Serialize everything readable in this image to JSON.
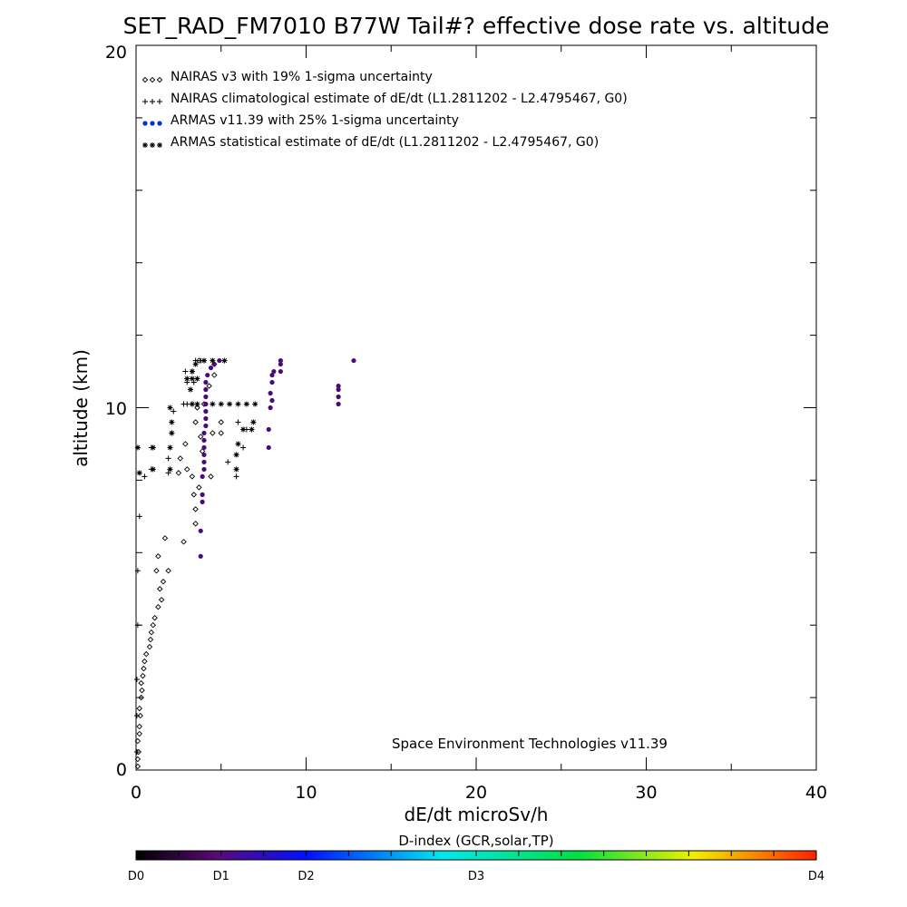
{
  "chart_data": {
    "type": "scatter",
    "title": "SET_RAD_FM7010  B77W Tail#? effective dose rate vs. altitude",
    "xlabel": "dE/dt microSv/h",
    "ylabel": "altitude (km)",
    "xlim": [
      0,
      40
    ],
    "ylim": [
      0,
      20
    ],
    "x_ticks": [
      "0",
      "10",
      "20",
      "30",
      "40"
    ],
    "y_ticks": [
      "0",
      "10",
      "20"
    ],
    "legend_position": "top-left",
    "credit": "Space Environment Technologies v11.39",
    "colorbar": {
      "title": "D-index (GCR,solar,TP)",
      "labels": [
        {
          "text": "D0",
          "pos": 0.0
        },
        {
          "text": "D1",
          "pos": 0.125
        },
        {
          "text": "D2",
          "pos": 0.25
        },
        {
          "text": "D3",
          "pos": 0.5
        },
        {
          "text": "D4",
          "pos": 1.0
        }
      ],
      "colors": [
        "#000000",
        "#5a0a78",
        "#0010ff",
        "#00e8f0",
        "#00e040",
        "#f0f000",
        "#ff2000"
      ]
    },
    "series": [
      {
        "name": "NAIRAS v3 with 19% 1-sigma uncertainty",
        "marker": "diamond",
        "color": "#000000",
        "points": [
          [
            0.1,
            0.1
          ],
          [
            0.1,
            0.3
          ],
          [
            0.15,
            0.5
          ],
          [
            0.1,
            0.8
          ],
          [
            0.2,
            1.0
          ],
          [
            0.2,
            1.2
          ],
          [
            0.25,
            1.5
          ],
          [
            0.2,
            1.7
          ],
          [
            0.3,
            2.0
          ],
          [
            0.35,
            2.2
          ],
          [
            0.3,
            2.4
          ],
          [
            0.4,
            2.6
          ],
          [
            0.45,
            2.8
          ],
          [
            0.5,
            3.0
          ],
          [
            0.6,
            3.2
          ],
          [
            0.8,
            3.4
          ],
          [
            0.85,
            3.6
          ],
          [
            0.9,
            3.8
          ],
          [
            1.0,
            4.0
          ],
          [
            1.1,
            4.2
          ],
          [
            1.3,
            4.5
          ],
          [
            1.5,
            4.7
          ],
          [
            1.4,
            5.0
          ],
          [
            1.6,
            5.2
          ],
          [
            1.2,
            5.5
          ],
          [
            1.9,
            5.5
          ],
          [
            1.3,
            5.9
          ],
          [
            1.7,
            6.4
          ],
          [
            2.8,
            6.3
          ],
          [
            3.5,
            6.8
          ],
          [
            3.5,
            7.2
          ],
          [
            3.4,
            7.6
          ],
          [
            3.7,
            7.8
          ],
          [
            3.3,
            8.1
          ],
          [
            2.5,
            8.2
          ],
          [
            3.0,
            8.3
          ],
          [
            4.4,
            8.1
          ],
          [
            2.6,
            8.6
          ],
          [
            3.9,
            8.8
          ],
          [
            2.9,
            9.0
          ],
          [
            3.8,
            9.2
          ],
          [
            4.5,
            9.3
          ],
          [
            5.0,
            9.3
          ],
          [
            3.5,
            9.6
          ],
          [
            5.0,
            9.6
          ],
          [
            3.6,
            10.0
          ],
          [
            4.0,
            10.1
          ],
          [
            4.3,
            10.6
          ],
          [
            4.6,
            10.9
          ],
          [
            4.6,
            11.2
          ],
          [
            3.7,
            11.3
          ]
        ]
      },
      {
        "name": "NAIRAS climatological estimate of dE/dt (L1.2811202 - L2.4795467, G0)",
        "marker": "plus",
        "color": "#000000",
        "points": [
          [
            0.05,
            0.5
          ],
          [
            0.05,
            1.5
          ],
          [
            0.05,
            2.5
          ],
          [
            0.1,
            4.0
          ],
          [
            0.1,
            5.5
          ],
          [
            0.2,
            7.0
          ],
          [
            0.5,
            8.1
          ],
          [
            0.9,
            8.3
          ],
          [
            0.9,
            8.9
          ],
          [
            1.9,
            8.2
          ],
          [
            1.9,
            8.6
          ],
          [
            2.0,
            8.9
          ],
          [
            2.1,
            9.3
          ],
          [
            2.1,
            9.6
          ],
          [
            2.2,
            9.9
          ],
          [
            5.9,
            8.1
          ],
          [
            5.4,
            8.5
          ],
          [
            6.3,
            8.9
          ],
          [
            6.5,
            9.4
          ],
          [
            6.0,
            9.6
          ],
          [
            2.8,
            10.1
          ],
          [
            3.0,
            10.1
          ],
          [
            3.3,
            10.1
          ],
          [
            3.2,
            10.5
          ],
          [
            3.0,
            10.7
          ],
          [
            3.4,
            10.7
          ],
          [
            2.9,
            11.0
          ],
          [
            3.3,
            11.0
          ],
          [
            3.5,
            11.3
          ],
          [
            3.8,
            11.3
          ]
        ]
      },
      {
        "name": "ARMAS v11.39 with 25% 1-sigma uncertainty",
        "marker": "circle",
        "color": "#0033cc",
        "points": [
          [
            3.8,
            5.9
          ],
          [
            3.8,
            6.6
          ],
          [
            3.9,
            7.4
          ],
          [
            3.9,
            7.6
          ],
          [
            3.9,
            8.1
          ],
          [
            4.0,
            8.3
          ],
          [
            4.0,
            8.5
          ],
          [
            4.0,
            8.7
          ],
          [
            4.0,
            8.9
          ],
          [
            4.0,
            9.1
          ],
          [
            4.0,
            9.3
          ],
          [
            4.1,
            9.5
          ],
          [
            4.1,
            9.7
          ],
          [
            4.1,
            9.9
          ],
          [
            4.1,
            10.1
          ],
          [
            4.1,
            10.3
          ],
          [
            4.1,
            10.5
          ],
          [
            4.1,
            10.7
          ],
          [
            4.2,
            10.9
          ],
          [
            4.4,
            11.1
          ],
          [
            4.6,
            11.2
          ],
          [
            4.9,
            11.3
          ],
          [
            7.8,
            8.9
          ],
          [
            7.8,
            9.4
          ],
          [
            7.9,
            10.0
          ],
          [
            8.0,
            10.2
          ],
          [
            7.9,
            10.4
          ],
          [
            8.0,
            10.7
          ],
          [
            8.0,
            10.9
          ],
          [
            8.1,
            11.0
          ],
          [
            8.5,
            11.0
          ],
          [
            8.5,
            11.2
          ],
          [
            8.5,
            11.3
          ],
          [
            11.9,
            10.1
          ],
          [
            11.9,
            10.3
          ],
          [
            11.9,
            10.5
          ],
          [
            11.9,
            10.6
          ],
          [
            12.8,
            11.3
          ]
        ]
      },
      {
        "name": "ARMAS statistical estimate of dE/dt (L1.2811202 - L2.4795467, G0)",
        "marker": "asterisk",
        "color": "#000000",
        "points": [
          [
            0.1,
            8.9
          ],
          [
            0.2,
            8.2
          ],
          [
            1.0,
            8.9
          ],
          [
            1.0,
            8.3
          ],
          [
            2.0,
            8.3
          ],
          [
            2.0,
            8.9
          ],
          [
            2.1,
            9.3
          ],
          [
            2.1,
            9.6
          ],
          [
            2.0,
            10.0
          ],
          [
            5.9,
            8.3
          ],
          [
            5.9,
            8.7
          ],
          [
            6.0,
            9.0
          ],
          [
            6.3,
            9.4
          ],
          [
            6.8,
            9.4
          ],
          [
            6.9,
            9.6
          ],
          [
            3.3,
            10.1
          ],
          [
            3.6,
            10.1
          ],
          [
            4.5,
            10.1
          ],
          [
            5.0,
            10.1
          ],
          [
            5.5,
            10.1
          ],
          [
            6.0,
            10.1
          ],
          [
            6.5,
            10.1
          ],
          [
            7.0,
            10.1
          ],
          [
            3.2,
            10.5
          ],
          [
            3.0,
            10.8
          ],
          [
            3.3,
            10.8
          ],
          [
            3.6,
            10.8
          ],
          [
            3.3,
            11.0
          ],
          [
            3.5,
            11.2
          ],
          [
            4.0,
            11.3
          ],
          [
            4.5,
            11.3
          ],
          [
            5.2,
            11.3
          ]
        ]
      }
    ]
  }
}
